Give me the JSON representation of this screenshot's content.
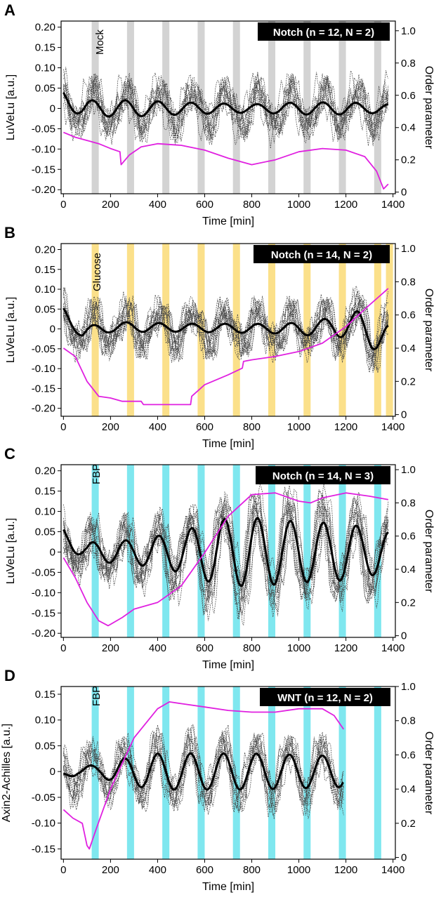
{
  "chart_data": [
    {
      "type": "line",
      "panel_label": "A",
      "condition_label": "Mock",
      "badge": "Notch (n = 12, N = 2)",
      "xlabel": "Time [min]",
      "ylabel": "LuVeLu [a.u.]",
      "ylabel_right": "Order parameter",
      "xlim": [
        -10,
        1410
      ],
      "ylim": [
        -0.21,
        0.215
      ],
      "ylim_right": [
        -0.01,
        1.06
      ],
      "x_ticks": [
        0,
        200,
        400,
        600,
        800,
        1000,
        1200,
        1400
      ],
      "x_tick_labels": [
        "0",
        "200",
        "400",
        "600",
        "800",
        "1000",
        "1200",
        "1400"
      ],
      "y_ticks": [
        -0.2,
        -0.15,
        -0.1,
        -0.05,
        0,
        0.05,
        0.1,
        0.15,
        0.2
      ],
      "y_tick_labels": [
        "-0.20",
        "-0.15",
        "-0.10",
        "-0.05",
        "0",
        "0.05",
        "0.10",
        "0.15",
        "0.20"
      ],
      "y_ticks_right": [
        0,
        0.2,
        0.4,
        0.6,
        0.8,
        1.0
      ],
      "y_tick_labels_right": [
        "0",
        "0.2",
        "0.4",
        "0.6",
        "0.8",
        "1.0"
      ],
      "band_color": "#d3d3d3",
      "stimulus_starts": [
        120,
        270,
        420,
        570,
        720,
        870,
        1020,
        1170,
        1320
      ],
      "stimulus_duration": 30,
      "period": 140,
      "amp_points": [
        [
          0,
          0.02
        ],
        [
          300,
          0.02
        ],
        [
          500,
          0.015
        ],
        [
          800,
          0.01
        ],
        [
          1000,
          0.015
        ],
        [
          1200,
          0.015
        ],
        [
          1380,
          0.01
        ]
      ],
      "offset_points": [
        [
          0,
          0.025
        ],
        [
          80,
          0
        ],
        [
          1380,
          0
        ]
      ],
      "phase": 0.8,
      "n_traces": 12,
      "trace_amp": 0.07,
      "trace_end": 1380,
      "order_parameter": {
        "x": [
          0,
          50,
          100,
          150,
          200,
          240,
          245,
          280,
          330,
          400,
          500,
          600,
          700,
          800,
          900,
          1000,
          1100,
          1200,
          1280,
          1330,
          1360,
          1380
        ],
        "y": [
          0.37,
          0.34,
          0.32,
          0.3,
          0.27,
          0.25,
          0.17,
          0.23,
          0.28,
          0.3,
          0.29,
          0.26,
          0.21,
          0.17,
          0.2,
          0.25,
          0.27,
          0.26,
          0.22,
          0.13,
          0.02,
          0.05
        ]
      }
    },
    {
      "type": "line",
      "panel_label": "B",
      "condition_label": "Glucose",
      "badge": "Notch (n = 14, N = 2)",
      "xlabel": "Time [min]",
      "ylabel": "LuVeLu [a.u.]",
      "ylabel_right": "Order parameter",
      "xlim": [
        -10,
        1410
      ],
      "ylim": [
        -0.22,
        0.215
      ],
      "ylim_right": [
        -0.01,
        1.03
      ],
      "x_ticks": [
        0,
        200,
        400,
        600,
        800,
        1000,
        1200,
        1400
      ],
      "x_tick_labels": [
        "0",
        "200",
        "400",
        "600",
        "800",
        "1000",
        "1200",
        "1400"
      ],
      "y_ticks": [
        -0.2,
        -0.15,
        -0.1,
        -0.05,
        0,
        0.05,
        0.1,
        0.15,
        0.2
      ],
      "y_tick_labels": [
        "-0.20",
        "-0.15",
        "-0.10",
        "-0.05",
        "0",
        "0.05",
        "0.10",
        "0.15",
        "0.20"
      ],
      "y_ticks_right": [
        0,
        0.2,
        0.4,
        0.6,
        0.8,
        1.0
      ],
      "y_tick_labels_right": [
        "0",
        "0.2",
        "0.4",
        "0.6",
        "0.8",
        "1.0"
      ],
      "band_color": "#fbe08a",
      "stimulus_starts": [
        120,
        270,
        420,
        570,
        720,
        870,
        1020,
        1170,
        1320,
        1370
      ],
      "stimulus_duration": 30,
      "period": 140,
      "amp_points": [
        [
          0,
          0.015
        ],
        [
          500,
          0.01
        ],
        [
          900,
          0.012
        ],
        [
          1100,
          0.02
        ],
        [
          1300,
          0.04
        ],
        [
          1380,
          0.04
        ]
      ],
      "offset_points": [
        [
          0,
          0.04
        ],
        [
          80,
          -0.01
        ],
        [
          200,
          0.005
        ],
        [
          1000,
          0
        ],
        [
          1250,
          0.01
        ],
        [
          1380,
          -0.03
        ]
      ],
      "phase": 0.6,
      "n_traces": 14,
      "trace_amp": 0.065,
      "trace_end": 1380,
      "order_parameter": {
        "x": [
          0,
          50,
          100,
          150,
          200,
          250,
          330,
          340,
          400,
          500,
          540,
          545,
          600,
          700,
          760,
          765,
          800,
          900,
          1000,
          1100,
          1200,
          1300,
          1380
        ],
        "y": [
          0.4,
          0.35,
          0.2,
          0.11,
          0.1,
          0.08,
          0.08,
          0.06,
          0.06,
          0.06,
          0.06,
          0.11,
          0.18,
          0.24,
          0.28,
          0.32,
          0.33,
          0.35,
          0.38,
          0.43,
          0.53,
          0.66,
          0.76
        ]
      }
    },
    {
      "type": "line",
      "panel_label": "C",
      "condition_label": "FBP",
      "badge": "Notch (n = 14, N = 3)",
      "xlabel": "Time [min]",
      "ylabel": "LuVeLu [a.u.]",
      "ylabel_right": "Order parameter",
      "xlim": [
        -10,
        1410
      ],
      "ylim": [
        -0.21,
        0.215
      ],
      "ylim_right": [
        -0.01,
        1.03
      ],
      "x_ticks": [
        0,
        200,
        400,
        600,
        800,
        1000,
        1200,
        1400
      ],
      "x_tick_labels": [
        "0",
        "200",
        "400",
        "600",
        "800",
        "1000",
        "1200",
        "1400"
      ],
      "y_ticks": [
        -0.2,
        -0.15,
        -0.1,
        -0.05,
        0,
        0.05,
        0.1,
        0.15,
        0.2
      ],
      "y_tick_labels": [
        "-0.20",
        "-0.15",
        "-0.10",
        "-0.05",
        "0",
        "0.05",
        "0.10",
        "0.15",
        "0.20"
      ],
      "y_ticks_right": [
        0,
        0.2,
        0.4,
        0.6,
        0.8,
        1.0
      ],
      "y_tick_labels_right": [
        "0",
        "0.2",
        "0.4",
        "0.6",
        "0.8",
        "1.0"
      ],
      "band_color": "#7fe7ef",
      "stimulus_starts": [
        120,
        270,
        420,
        570,
        720,
        870,
        1020,
        1170,
        1320
      ],
      "stimulus_duration": 30,
      "period": 140,
      "amp_points": [
        [
          0,
          0.02
        ],
        [
          300,
          0.03
        ],
        [
          500,
          0.05
        ],
        [
          650,
          0.08
        ],
        [
          800,
          0.085
        ],
        [
          1000,
          0.075
        ],
        [
          1200,
          0.07
        ],
        [
          1380,
          0.05
        ]
      ],
      "offset_points": [
        [
          0,
          0.04
        ],
        [
          100,
          0
        ],
        [
          1380,
          0
        ]
      ],
      "phase": 0.7,
      "n_traces": 14,
      "trace_amp": 0.07,
      "trace_end": 1380,
      "order_parameter": {
        "x": [
          0,
          50,
          100,
          150,
          190,
          250,
          300,
          400,
          500,
          600,
          700,
          800,
          900,
          1000,
          1050,
          1100,
          1200,
          1300,
          1380
        ],
        "y": [
          0.47,
          0.35,
          0.2,
          0.09,
          0.06,
          0.11,
          0.16,
          0.2,
          0.3,
          0.5,
          0.72,
          0.85,
          0.86,
          0.81,
          0.8,
          0.83,
          0.86,
          0.84,
          0.82
        ]
      }
    },
    {
      "type": "line",
      "panel_label": "D",
      "condition_label": "FBP",
      "badge": "WNT (n = 12, N = 2)",
      "xlabel": "Time [min]",
      "ylabel": "Axin2-Achilles [a.u.]",
      "ylabel_right": "Order parameter",
      "xlim": [
        -10,
        1410
      ],
      "ylim": [
        -0.17,
        0.165
      ],
      "ylim_right": [
        -0.01,
        1.0
      ],
      "x_ticks": [
        0,
        200,
        400,
        600,
        800,
        1000,
        1200,
        1400
      ],
      "x_tick_labels": [
        "0",
        "200",
        "400",
        "600",
        "800",
        "1000",
        "1200",
        "1400"
      ],
      "y_ticks": [
        -0.15,
        -0.1,
        -0.05,
        0,
        0.05,
        0.1,
        0.15
      ],
      "y_tick_labels": [
        "-0.15",
        "-0.10",
        "-0.05",
        "0",
        "0.05",
        "0.10",
        "0.15"
      ],
      "y_ticks_right": [
        0,
        0.2,
        0.4,
        0.6,
        0.8,
        1.0
      ],
      "y_tick_labels_right": [
        "0",
        "0.2",
        "0.4",
        "0.6",
        "0.8",
        "1.0"
      ],
      "band_color": "#7fe7ef",
      "stimulus_starts": [
        120,
        270,
        420,
        570,
        720,
        870,
        1020,
        1170,
        1320
      ],
      "stimulus_duration": 30,
      "period": 140,
      "amp_points": [
        [
          0,
          0.01
        ],
        [
          150,
          0.01
        ],
        [
          250,
          0.025
        ],
        [
          400,
          0.035
        ],
        [
          800,
          0.035
        ],
        [
          1190,
          0.03
        ]
      ],
      "offset_points": [
        [
          0,
          -0.01
        ],
        [
          60,
          0.005
        ],
        [
          150,
          0
        ],
        [
          1190,
          0
        ]
      ],
      "phase": 0.9,
      "n_traces": 12,
      "trace_amp": 0.05,
      "trace_end": 1190,
      "order_parameter": {
        "x": [
          0,
          40,
          80,
          100,
          110,
          140,
          200,
          300,
          400,
          450,
          500,
          600,
          700,
          800,
          900,
          1000,
          1100,
          1150,
          1190
        ],
        "y": [
          0.28,
          0.23,
          0.2,
          0.07,
          0.05,
          0.17,
          0.4,
          0.7,
          0.87,
          0.91,
          0.9,
          0.88,
          0.86,
          0.85,
          0.85,
          0.87,
          0.87,
          0.83,
          0.75
        ]
      }
    }
  ]
}
